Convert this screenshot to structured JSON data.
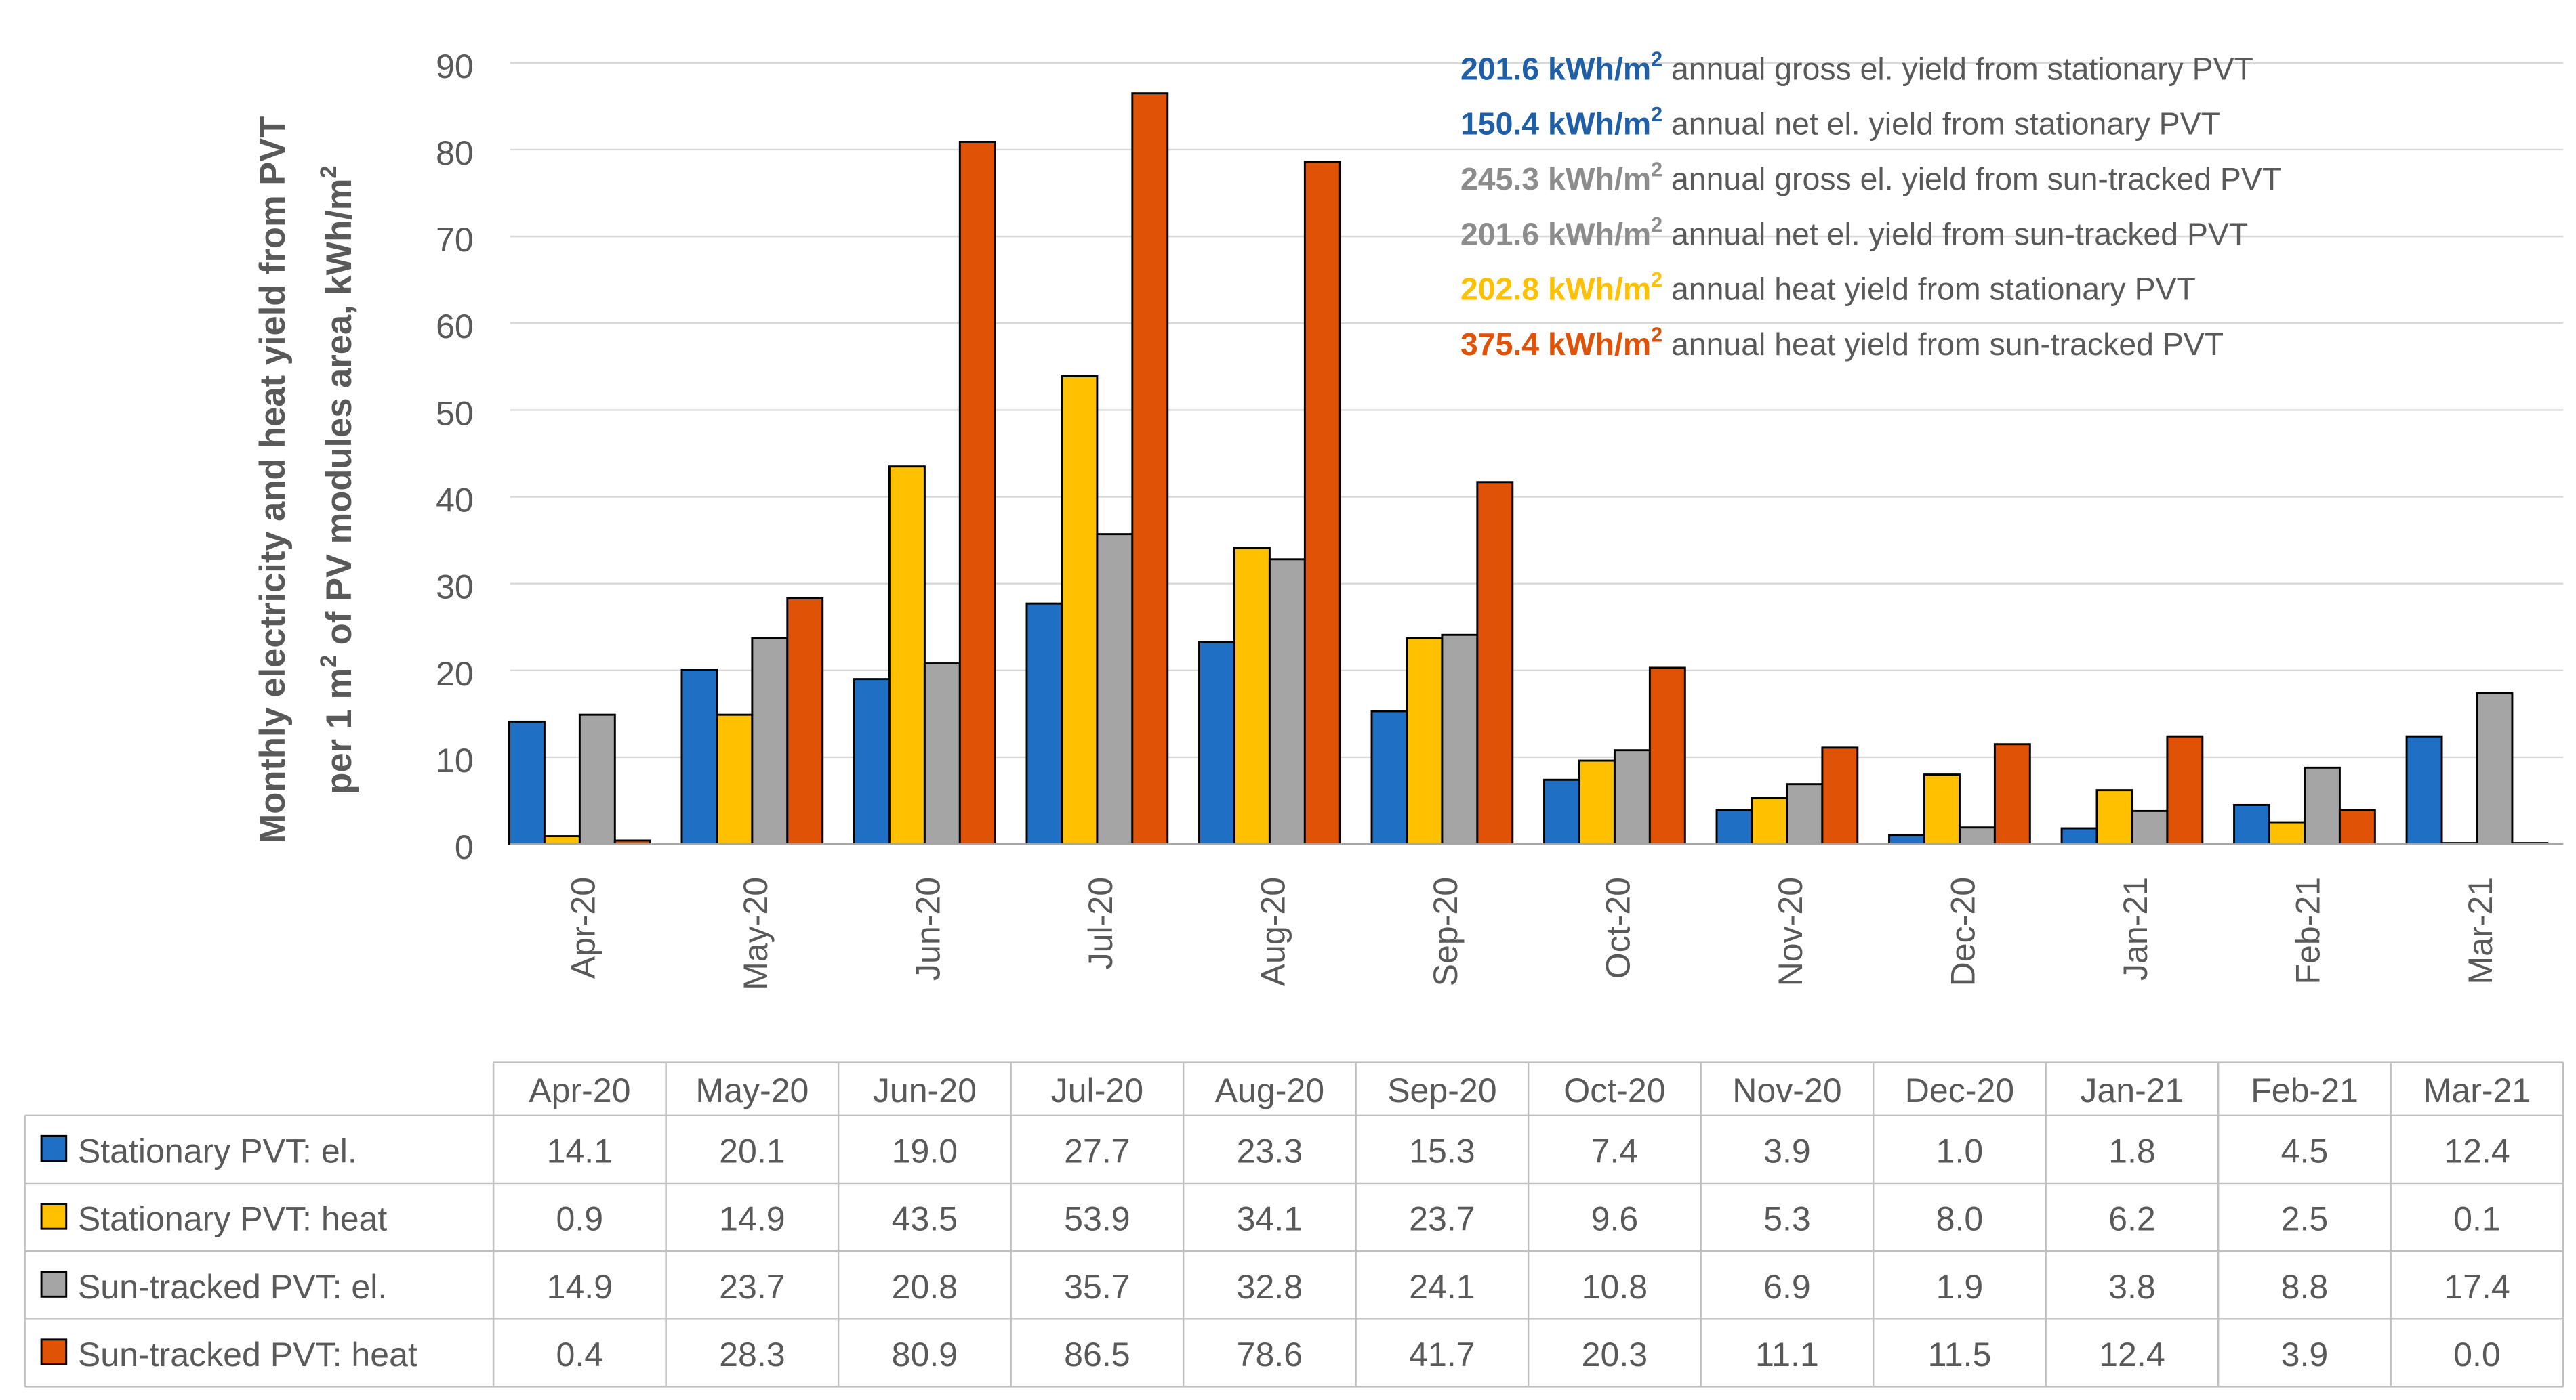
{
  "chart_data": {
    "type": "bar",
    "title": "",
    "ylabel_line1": "Monthly electricity and heat yield from PVT",
    "ylabel_line2_pre": "per 1 m",
    "ylabel_line2_sup": "2",
    "ylabel_line2_post": " of PV modules area, kWh/m",
    "ylabel_line2_sup2": "2",
    "xlabel": "",
    "ylim": [
      0,
      90
    ],
    "yticks": [
      0,
      10,
      20,
      30,
      40,
      50,
      60,
      70,
      80,
      90
    ],
    "grid": true,
    "categories": [
      "Apr-20",
      "May-20",
      "Jun-20",
      "Jul-20",
      "Aug-20",
      "Sep-20",
      "Oct-20",
      "Nov-20",
      "Dec-20",
      "Jan-21",
      "Feb-21",
      "Mar-21"
    ],
    "series": [
      {
        "name": "Stationary PVT: el.",
        "color": "#1F6FC5",
        "values": [
          14.1,
          20.1,
          19.0,
          27.7,
          23.3,
          15.3,
          7.4,
          3.9,
          1.0,
          1.8,
          4.5,
          12.4
        ]
      },
      {
        "name": "Stationary PVT: heat",
        "color": "#FFC000",
        "values": [
          0.9,
          14.9,
          43.5,
          53.9,
          34.1,
          23.7,
          9.6,
          5.3,
          8.0,
          6.2,
          2.5,
          0.1
        ]
      },
      {
        "name": "Sun-tracked PVT: el.",
        "color": "#A5A5A5",
        "values": [
          14.9,
          23.7,
          20.8,
          35.7,
          32.8,
          24.1,
          10.8,
          6.9,
          1.9,
          3.8,
          8.8,
          17.4
        ]
      },
      {
        "name": "Sun-tracked PVT: heat",
        "color": "#E05206",
        "values": [
          0.4,
          28.3,
          80.9,
          86.5,
          78.6,
          41.7,
          20.3,
          11.1,
          11.5,
          12.4,
          3.9,
          0.0
        ]
      }
    ],
    "table_values": [
      [
        "14.1",
        "20.1",
        "19.0",
        "27.7",
        "23.3",
        "15.3",
        "7.4",
        "3.9",
        "1.0",
        "1.8",
        "4.5",
        "12.4"
      ],
      [
        "0.9",
        "14.9",
        "43.5",
        "53.9",
        "34.1",
        "23.7",
        "9.6",
        "5.3",
        "8.0",
        "6.2",
        "2.5",
        "0.1"
      ],
      [
        "14.9",
        "23.7",
        "20.8",
        "35.7",
        "32.8",
        "24.1",
        "10.8",
        "6.9",
        "1.9",
        "3.8",
        "8.8",
        "17.4"
      ],
      [
        "0.4",
        "28.3",
        "80.9",
        "86.5",
        "78.6",
        "41.7",
        "20.3",
        "11.1",
        "11.5",
        "12.4",
        "3.9",
        "0.0"
      ]
    ],
    "annotations": [
      {
        "value": "201.6 kWh/m",
        "sup": "2",
        "text": " annual gross el. yield from stationary PVT",
        "color": "#1F5FA8"
      },
      {
        "value": "150.4 kWh/m",
        "sup": "2",
        "text": " annual net el. yield from stationary PVT",
        "color": "#1F5FA8"
      },
      {
        "value": "245.3 kWh/m",
        "sup": "2",
        "text": " annual gross el. yield from sun-tracked PVT",
        "color": "#8C8C8C"
      },
      {
        "value": "201.6 kWh/m",
        "sup": "2",
        "text": " annual net el. yield from sun-tracked PVT",
        "color": "#8C8C8C"
      },
      {
        "value": "202.8 kWh/m",
        "sup": "2",
        "text": " annual heat yield from stationary PVT",
        "color": "#FFC000"
      },
      {
        "value": "375.4 kWh/m",
        "sup": "2",
        "text": " annual heat yield from sun-tracked PVT",
        "color": "#E05206"
      }
    ],
    "colors": {
      "text": "#595959",
      "annotation_text": "#595959",
      "grid": "#D9D9D9",
      "table_border": "#BFBFBF",
      "bar_outline": "#000000"
    }
  }
}
